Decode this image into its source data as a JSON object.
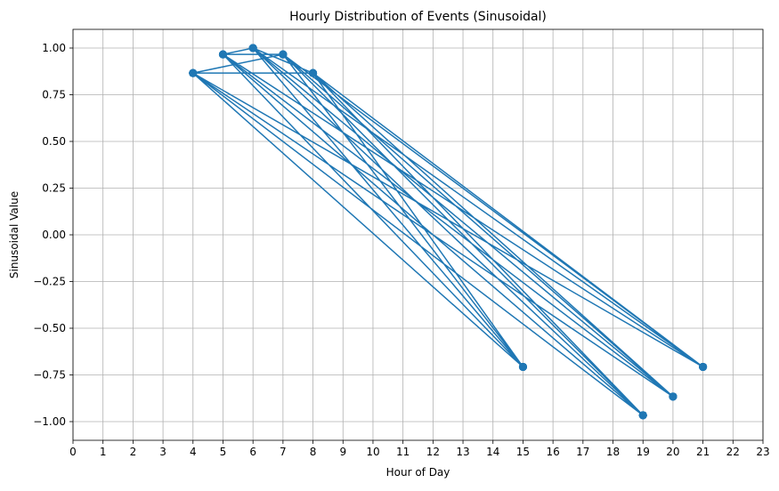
{
  "chart_data": {
    "type": "line",
    "title": "Hourly Distribution of Events (Sinusoidal)",
    "xlabel": "Hour of Day",
    "ylabel": "Sinusoidal Value",
    "xlim": [
      0,
      23
    ],
    "ylim": [
      -1.1,
      1.1
    ],
    "xticks": [
      0,
      1,
      2,
      3,
      4,
      5,
      6,
      7,
      8,
      9,
      10,
      11,
      12,
      13,
      14,
      15,
      16,
      17,
      18,
      19,
      20,
      21,
      22,
      23
    ],
    "xtick_labels": [
      "0",
      "1",
      "2",
      "3",
      "4",
      "5",
      "6",
      "7",
      "8",
      "9",
      "10",
      "11",
      "12",
      "13",
      "14",
      "15",
      "16",
      "17",
      "18",
      "19",
      "20",
      "21",
      "22",
      "23"
    ],
    "yticks": [
      1.0,
      0.75,
      0.5,
      0.25,
      0.0,
      -0.25,
      -0.5,
      -0.75,
      -1.0
    ],
    "ytick_labels": [
      "1.00",
      "0.75",
      "0.50",
      "0.25",
      "0.00",
      "−0.25",
      "−0.50",
      "−0.75",
      "−1.00"
    ],
    "grid": true,
    "marker": "circle",
    "series": [
      {
        "color": "#1f77b4",
        "x": [
          4,
          15,
          6,
          20,
          5,
          19,
          7,
          21,
          8,
          15,
          4,
          20,
          6,
          19,
          5,
          21,
          7,
          15,
          8,
          20,
          4,
          19,
          6,
          21,
          5,
          15,
          7,
          20,
          8,
          19,
          4,
          21,
          6,
          15,
          5,
          20,
          7,
          19,
          8,
          21,
          4,
          15,
          6,
          20,
          5,
          19,
          7,
          21,
          8,
          15,
          4,
          20,
          6,
          19,
          5,
          21,
          7,
          15,
          8,
          20,
          4,
          19,
          6,
          21,
          5,
          15,
          7,
          20,
          8,
          19,
          4,
          21,
          6,
          15,
          5,
          20,
          7,
          19,
          8,
          21,
          4,
          8,
          6,
          5,
          7,
          4
        ],
        "y": [
          0.866,
          -0.707,
          1.0,
          -0.866,
          0.966,
          -0.966,
          0.966,
          -0.707,
          0.866,
          -0.707,
          0.866,
          -0.866,
          1.0,
          -0.966,
          0.966,
          -0.707,
          0.966,
          -0.707,
          0.866,
          -0.866,
          0.866,
          -0.966,
          1.0,
          -0.707,
          0.966,
          -0.707,
          0.966,
          -0.866,
          0.866,
          -0.966,
          0.866,
          -0.707,
          1.0,
          -0.707,
          0.966,
          -0.866,
          0.966,
          -0.966,
          0.866,
          -0.707,
          0.866,
          -0.707,
          1.0,
          -0.866,
          0.966,
          -0.966,
          0.966,
          -0.707,
          0.866,
          -0.707,
          0.866,
          -0.866,
          1.0,
          -0.966,
          0.966,
          -0.707,
          0.966,
          -0.707,
          0.866,
          -0.866,
          0.866,
          -0.966,
          1.0,
          -0.707,
          0.966,
          -0.707,
          0.966,
          -0.866,
          0.866,
          -0.966,
          0.866,
          -0.707,
          1.0,
          -0.707,
          0.966,
          -0.866,
          0.966,
          -0.966,
          0.866,
          -0.707,
          0.866,
          0.866,
          1.0,
          0.966,
          0.966,
          0.866
        ]
      }
    ]
  }
}
